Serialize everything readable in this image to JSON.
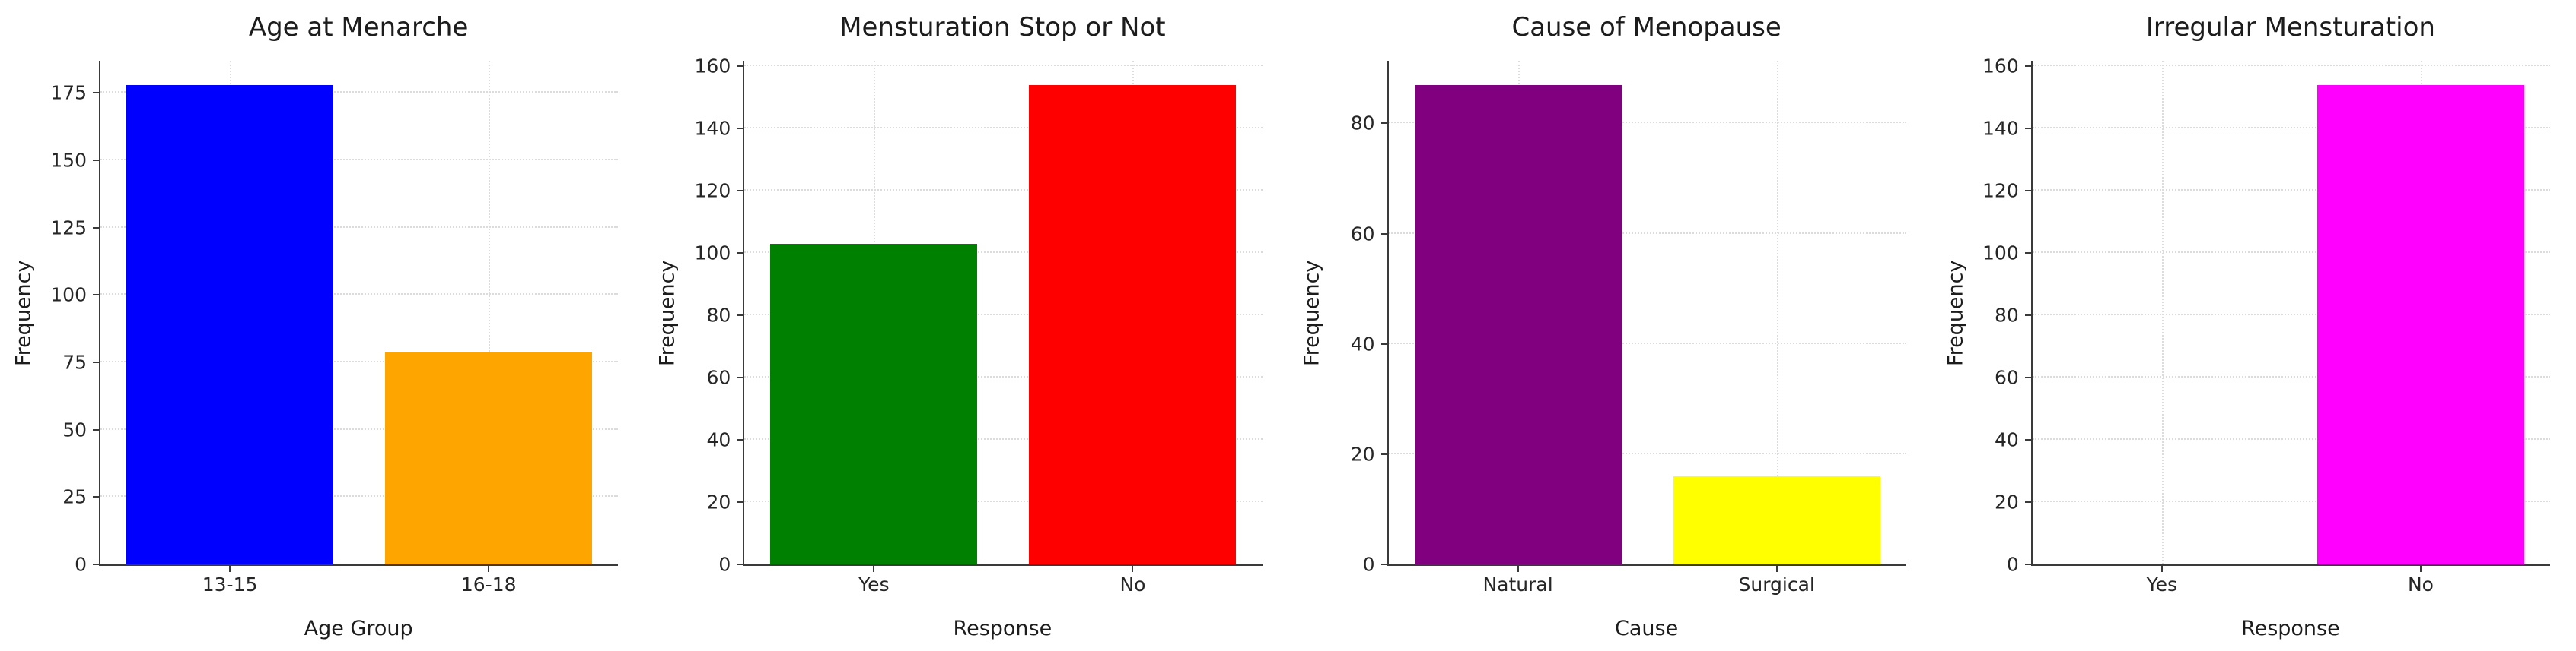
{
  "figure": {
    "background": "#ffffff",
    "text_color": "#1c1c1c",
    "grid_color": "#dcdcdc",
    "axis_color": "#3a3a3a"
  },
  "chart_data": [
    {
      "type": "bar",
      "title": "Age at Menarche",
      "xlabel": "Age Group",
      "ylabel": "Frequency",
      "categories": [
        "13-15",
        "16-18"
      ],
      "values": [
        178,
        79
      ],
      "colors": [
        "#0000ff",
        "#ffa500"
      ],
      "yticks": [
        0,
        25,
        50,
        75,
        100,
        125,
        150,
        175
      ],
      "ylim": [
        0,
        186.9
      ],
      "grid": true,
      "legend": "none"
    },
    {
      "type": "bar",
      "title": "Mensturation Stop or Not",
      "xlabel": "Response",
      "ylabel": "Frequency",
      "categories": [
        "Yes",
        "No"
      ],
      "values": [
        103,
        154
      ],
      "colors": [
        "#008000",
        "#ff0000"
      ],
      "yticks": [
        0,
        20,
        40,
        60,
        80,
        100,
        120,
        140,
        160
      ],
      "ylim": [
        0,
        161.7
      ],
      "grid": true,
      "legend": "none"
    },
    {
      "type": "bar",
      "title": "Cause of Menopause",
      "xlabel": "Cause",
      "ylabel": "Frequency",
      "categories": [
        "Natural",
        "Surgical"
      ],
      "values": [
        87,
        16
      ],
      "colors": [
        "#800080",
        "#ffff00"
      ],
      "yticks": [
        0,
        20,
        40,
        60,
        80
      ],
      "ylim": [
        0,
        91.35
      ],
      "grid": true,
      "legend": "none"
    },
    {
      "type": "bar",
      "title": "Irregular Mensturation",
      "xlabel": "Response",
      "ylabel": "Frequency",
      "categories": [
        "Yes",
        "No"
      ],
      "values": [
        0,
        154
      ],
      "colors": [
        "#ff00ff",
        "#ff00ff"
      ],
      "yticks": [
        0,
        20,
        40,
        60,
        80,
        100,
        120,
        140,
        160
      ],
      "ylim": [
        0,
        161.7
      ],
      "grid": true,
      "legend": "none"
    }
  ]
}
